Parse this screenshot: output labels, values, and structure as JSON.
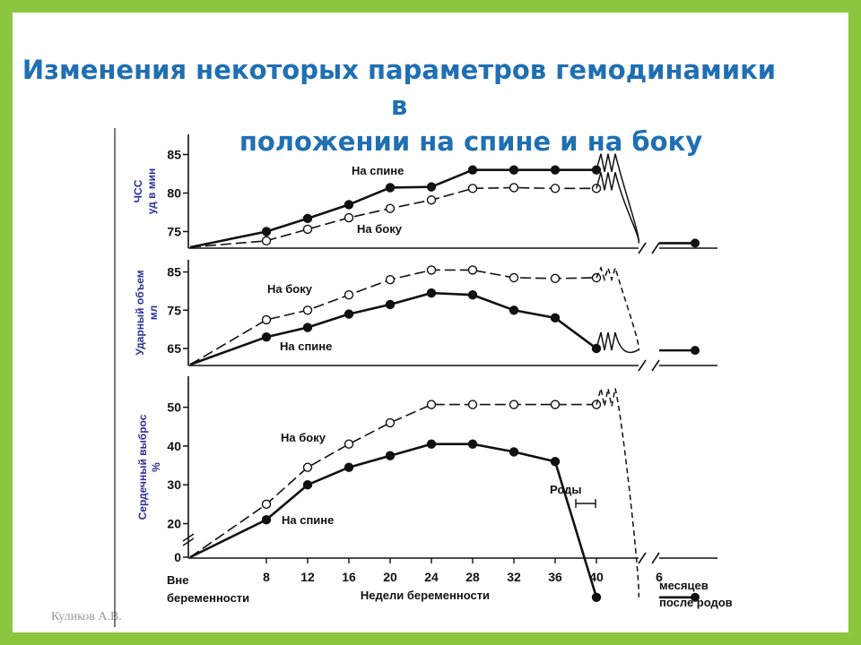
{
  "slide": {
    "title_line1": "Изменения некоторых параметров гемодинамики в",
    "title_line2": "положении на спине и на боку",
    "author": "Куликов А.В."
  },
  "colors": {
    "frame": "#8cc63f",
    "title": "#1f6fb2",
    "label_supine": "#2b2f9c",
    "label_lateral": "#d0202a",
    "axis_label": "#2b2f9c"
  },
  "chart_data": [
    {
      "type": "line",
      "ylabel_line1": "ЧСС",
      "ylabel_line2": "уд в мин",
      "y_ticks": [
        75,
        80,
        85
      ],
      "ylim": [
        72,
        86
      ],
      "x": [
        8,
        12,
        16,
        20,
        24,
        28,
        32,
        36,
        40
      ],
      "series": [
        {
          "name": "На спине",
          "style": "solid",
          "marker": "filled",
          "values": [
            75,
            76.7,
            78.5,
            80.7,
            80.8,
            83,
            83,
            83,
            83
          ]
        },
        {
          "name": "На боку",
          "style": "dashed",
          "marker": "open",
          "values": [
            73.8,
            75.3,
            76.8,
            78,
            79.1,
            80.6,
            80.7,
            80.6,
            80.6
          ]
        }
      ],
      "postpartum_value": 73.5
    },
    {
      "type": "line",
      "ylabel_line1": "Ударный объем",
      "ylabel_line2": "мл",
      "y_ticks": [
        65,
        75,
        85
      ],
      "ylim": [
        61,
        88
      ],
      "x": [
        8,
        12,
        16,
        20,
        24,
        28,
        32,
        36,
        40
      ],
      "series": [
        {
          "name": "На боку",
          "style": "dashed",
          "marker": "open",
          "values": [
            72.5,
            75,
            79,
            83,
            85.5,
            85.5,
            83.5,
            83.3,
            83.5
          ]
        },
        {
          "name": "На спине",
          "style": "solid",
          "marker": "filled",
          "values": [
            68,
            70.5,
            74,
            76.5,
            79.5,
            79,
            75,
            73,
            65
          ]
        }
      ],
      "postpartum_value": 64.5
    },
    {
      "type": "line",
      "ylabel_line1": "Сердечный выброс",
      "ylabel_line2": "%",
      "y_ticks": [
        0,
        20,
        30,
        40,
        50
      ],
      "ylim": [
        0,
        55
      ],
      "x": [
        8,
        12,
        16,
        20,
        24,
        28,
        32,
        36,
        40
      ],
      "series": [
        {
          "name": "На боку",
          "style": "dashed",
          "marker": "open",
          "values": [
            25,
            34.5,
            40.5,
            46,
            50.7,
            50.7,
            50.7,
            50.7,
            50.7
          ]
        },
        {
          "name": "На спине",
          "style": "solid",
          "marker": "filled",
          "values": [
            21,
            30,
            34.5,
            37.5,
            40.5,
            40.5,
            38.5,
            36,
            1
          ]
        }
      ],
      "postpartum_value": 1,
      "annotation": "Роды"
    }
  ],
  "x_axis": {
    "tick_labels": [
      "8",
      "12",
      "16",
      "20",
      "24",
      "28",
      "32",
      "36",
      "40"
    ],
    "postpartum_tick": "6",
    "baseline_label_line1": "Вне",
    "baseline_label_line2": "беременности",
    "xlabel": "Недели беременности",
    "postpartum_label_line1": "месяцев",
    "postpartum_label_line2": "после родов"
  }
}
